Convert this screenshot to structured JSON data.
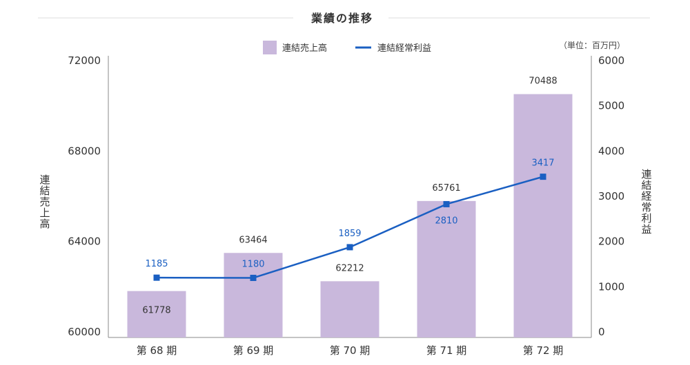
{
  "chart_data": {
    "type": "bar",
    "title": "業績の推移",
    "unit_note": "（単位：百万円）",
    "categories": [
      "第 68 期",
      "第 69 期",
      "第 70 期",
      "第 71 期",
      "第 72 期"
    ],
    "series": [
      {
        "name": "連結売上高",
        "type": "bar",
        "axis": "left",
        "color": "#c9b8dc",
        "values": [
          61778,
          63464,
          62212,
          65761,
          70488
        ]
      },
      {
        "name": "連結経常利益",
        "type": "line",
        "axis": "right",
        "color": "#1a5fc2",
        "values": [
          1185,
          1180,
          1859,
          2810,
          3417
        ]
      }
    ],
    "ylabel": "連結売上高",
    "y2label": "連結経常利益",
    "ylim": [
      60000,
      72000
    ],
    "y2lim": [
      0,
      6000
    ],
    "yticks": [
      "60000",
      "64000",
      "68000",
      "72000"
    ],
    "y2ticks": [
      "0",
      "1000",
      "2000",
      "3000",
      "4000",
      "5000",
      "6000"
    ],
    "legend": "top-center",
    "grid": false
  }
}
